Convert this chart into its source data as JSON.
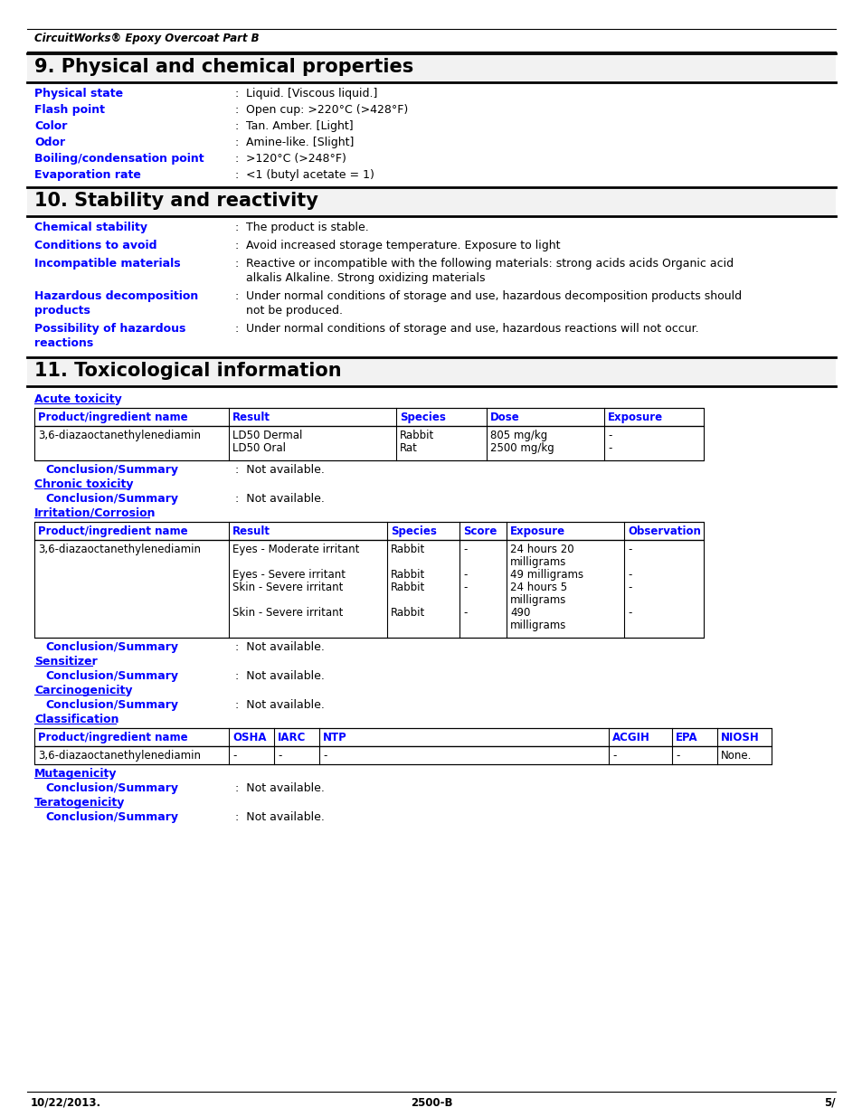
{
  "header_italic": "CircuitWorks® Epoxy Overcoat Part B",
  "section9_title": "9. Physical and chemical properties",
  "section10_title": "10. Stability and reactivity",
  "section11_title": "11. Toxicological information",
  "blue_color": "#0000FF",
  "black_color": "#000000",
  "bg_color": "#FFFFFF",
  "properties9": [
    [
      "Physical state",
      "Liquid. [Viscous liquid.]"
    ],
    [
      "Flash point",
      "Open cup: >220°C (>428°F)"
    ],
    [
      "Color",
      "Tan. Amber. [Light]"
    ],
    [
      "Odor",
      "Amine-like. [Slight]"
    ],
    [
      "Boiling/condensation point",
      ">120°C (>248°F)"
    ],
    [
      "Evaporation rate",
      "<1 (butyl acetate = 1)"
    ]
  ],
  "properties10": [
    [
      "Chemical stability",
      "The product is stable.",
      1
    ],
    [
      "Conditions to avoid",
      "Avoid increased storage temperature. Exposure to light",
      1
    ],
    [
      "Incompatible materials",
      "Reactive or incompatible with the following materials: strong acids acids Organic acid|alkalis Alkaline. Strong oxidizing materials",
      2
    ],
    [
      "Hazardous decomposition|products",
      "Under normal conditions of storage and use, hazardous decomposition products should|not be produced.",
      2
    ],
    [
      "Possibility of hazardous|reactions",
      "Under normal conditions of storage and use, hazardous reactions will not occur.",
      2
    ]
  ],
  "acute_table_headers": [
    "Product/ingredient name",
    "Result",
    "Species",
    "Dose",
    "Exposure"
  ],
  "acute_col_widths": [
    215,
    185,
    100,
    130,
    110
  ],
  "acute_data_col0": "3,6-diazaoctanethylenediamin",
  "acute_data_col1": [
    "LD50 Dermal",
    "LD50 Oral"
  ],
  "acute_data_col2": [
    "Rabbit",
    "Rat"
  ],
  "acute_data_col3": [
    "805 mg/kg",
    "2500 mg/kg"
  ],
  "acute_data_col4": [
    "-",
    "-"
  ],
  "irr_table_headers": [
    "Product/ingredient name",
    "Result",
    "Species",
    "Score",
    "Exposure",
    "Observation"
  ],
  "irr_col_widths": [
    215,
    175,
    80,
    52,
    130,
    88
  ],
  "irr_data_result": [
    "Eyes - Moderate irritant",
    "",
    "Eyes - Severe irritant",
    "Skin - Severe irritant",
    "",
    "Skin - Severe irritant"
  ],
  "irr_data_species": [
    "Rabbit",
    "",
    "Rabbit",
    "Rabbit",
    "",
    "Rabbit"
  ],
  "irr_data_score": [
    "-",
    "",
    "-",
    "-",
    "",
    "-"
  ],
  "irr_data_exposure": [
    "24 hours 20",
    "milligrams",
    "49 milligrams",
    "24 hours 5",
    "milligrams",
    "490",
    "milligrams"
  ],
  "irr_data_obs": [
    "-",
    "",
    "-",
    "-",
    "",
    "-"
  ],
  "cls_col_widths": [
    215,
    50,
    50,
    320,
    70,
    50,
    60
  ],
  "cls_headers": [
    "Product/ingredient name",
    "OSHA",
    "IARC",
    "NTP",
    "ACGIH",
    "EPA",
    "NIOSH"
  ],
  "cls_data": [
    "3,6-diazaoctanethylenediamin",
    "-",
    "-",
    "-",
    "-",
    "-",
    "None."
  ],
  "footer_left": "10/22/2013.",
  "footer_center": "2500-B",
  "footer_right": "5/"
}
